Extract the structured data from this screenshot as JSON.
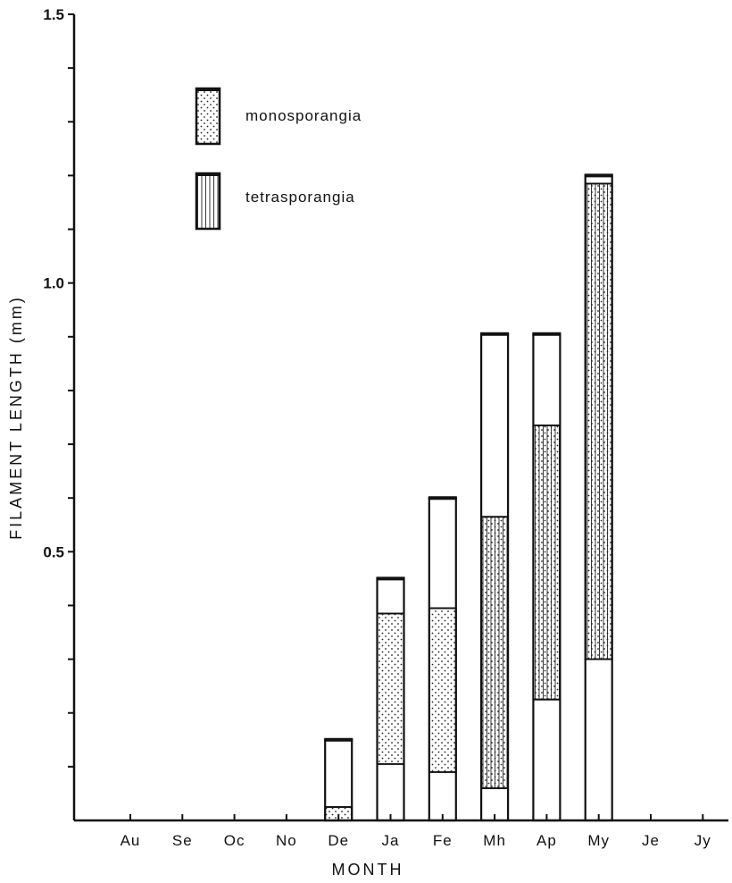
{
  "chart_data": {
    "type": "bar",
    "subtype": "stacked-floating",
    "title": "",
    "xlabel": "MONTH",
    "ylabel": "FILAMENT LENGTH (mm)",
    "ylim": [
      0,
      1.5
    ],
    "yticks": [
      0,
      0.1,
      0.2,
      0.3,
      0.4,
      0.5,
      0.6,
      0.7,
      0.8,
      0.9,
      1.0,
      1.1,
      1.2,
      1.3,
      1.4,
      1.5
    ],
    "ytick_labels": [
      {
        "value": 0.5,
        "label": "0.5"
      },
      {
        "value": 1.0,
        "label": "1.0"
      },
      {
        "value": 1.5,
        "label": "1.5"
      }
    ],
    "categories": [
      "Au",
      "Se",
      "Oc",
      "No",
      "De",
      "Ja",
      "Fe",
      "Mh",
      "Ap",
      "My",
      "Je",
      "Jy"
    ],
    "grid": false,
    "legend_position": "top-left",
    "legend": [
      {
        "key": "mono",
        "label": "monosporangia",
        "pattern": "dots"
      },
      {
        "key": "tetra",
        "label": "tetrasporangia",
        "pattern": "vertical-lines"
      }
    ],
    "bars": [
      {
        "category": "De",
        "max": 0.15,
        "mono": [
          0,
          0.025
        ],
        "tetra": null
      },
      {
        "category": "Ja",
        "max": 0.45,
        "mono": [
          0.105,
          0.385
        ],
        "tetra": null
      },
      {
        "category": "Fe",
        "max": 0.6,
        "mono": [
          0.09,
          0.395
        ],
        "tetra": null
      },
      {
        "category": "Mh",
        "max": 0.905,
        "mono": [
          0.06,
          0.565
        ],
        "tetra": [
          0.06,
          0.565
        ]
      },
      {
        "category": "Ap",
        "max": 0.905,
        "mono": [
          0.225,
          0.735
        ],
        "tetra": [
          0.225,
          0.735
        ]
      },
      {
        "category": "My",
        "max": 1.2,
        "mono": [
          0.3,
          1.185
        ],
        "tetra": [
          0.3,
          1.185
        ]
      }
    ]
  }
}
